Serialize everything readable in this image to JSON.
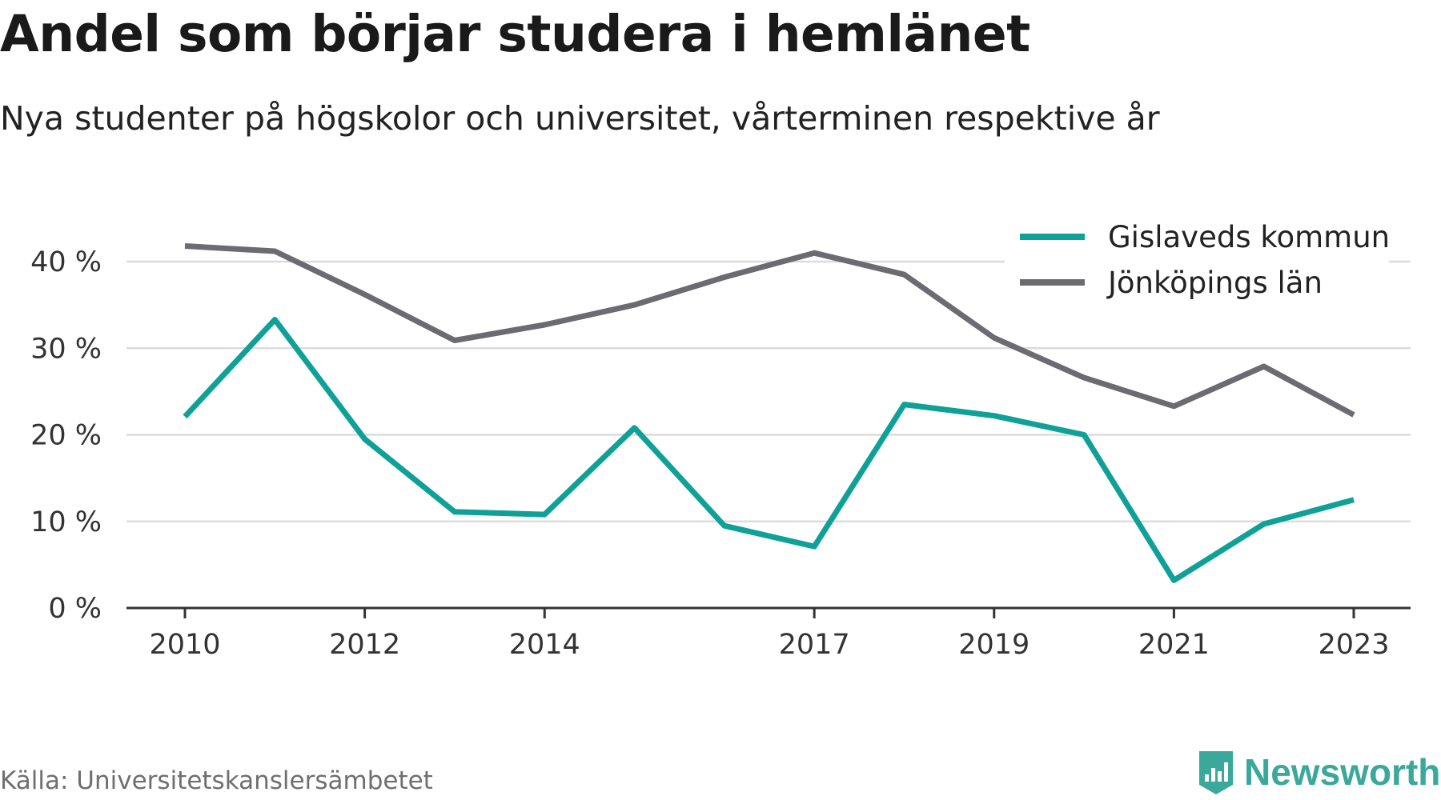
{
  "header": {
    "title": "Andel som börjar studera i hemlänet",
    "subtitle": "Nya studenter på högskolor och universitet, vårterminen respektive år"
  },
  "footer": {
    "source": "Källa: Universitetskanslersämbetet",
    "brand": "Newsworthy"
  },
  "colors": {
    "series_1": "#0fa197",
    "series_2": "#6c6b72",
    "grid": "#dcdcdc",
    "axis": "#333333",
    "brand": "#3aa89b"
  },
  "chart_data": {
    "type": "line",
    "title": "Andel som börjar studera i hemlänet",
    "subtitle": "Nya studenter på högskolor och universitet, vårterminen respektive år",
    "x": [
      2010,
      2011,
      2012,
      2013,
      2014,
      2015,
      2016,
      2017,
      2018,
      2019,
      2020,
      2021,
      2022,
      2023
    ],
    "x_tick_labels": [
      "2010",
      "2012",
      "2014",
      "2017",
      "2019",
      "2021",
      "2023"
    ],
    "y_tick_labels": [
      "0 %",
      "10 %",
      "20 %",
      "30 %",
      "40 %"
    ],
    "ylim": [
      0,
      40
    ],
    "grid": true,
    "legend_position": "top-right",
    "series": [
      {
        "name": "Gislaveds kommun",
        "color": "#0fa197",
        "values": [
          22.1,
          33.3,
          19.5,
          11.1,
          10.8,
          20.8,
          9.5,
          7.1,
          23.5,
          22.2,
          20.0,
          3.2,
          9.7,
          12.5
        ]
      },
      {
        "name": "Jönköpings län",
        "color": "#6c6b72",
        "values": [
          41.8,
          41.2,
          36.2,
          30.9,
          32.7,
          35.0,
          38.2,
          41.0,
          38.5,
          31.2,
          26.6,
          23.3,
          27.9,
          22.3
        ]
      }
    ]
  }
}
